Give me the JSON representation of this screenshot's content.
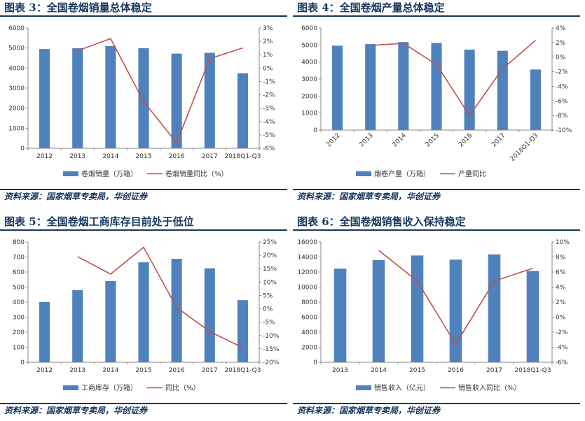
{
  "colors": {
    "bar": "#4F81BD",
    "line": "#C0504D",
    "title": "#17375E"
  },
  "source_text": "资料来源：国家烟草专卖局，华创证券",
  "panels": [
    {
      "title": "图表 3：全国卷烟销量总体稳定",
      "chart_data": {
        "type": "bar",
        "categories": [
          "2012",
          "2013",
          "2014",
          "2015",
          "2016",
          "2017",
          "2018Q1-Q3"
        ],
        "rotate_x_labels": false,
        "series": [
          {
            "name": "卷烟销量（万箱）",
            "kind": "bar",
            "axis": "left",
            "values": [
              4950,
              4990,
              5100,
              4990,
              4720,
              4760,
              3740
            ]
          },
          {
            "name": "卷烟销量同比（%）",
            "kind": "line",
            "axis": "right",
            "values": [
              null,
              1.3,
              2.2,
              -2.5,
              -5.6,
              0.7,
              1.5
            ]
          }
        ],
        "left_ylim": [
          0,
          6000
        ],
        "left_ticks": [
          "0",
          "1000",
          "2000",
          "3000",
          "4000",
          "5000",
          "6000"
        ],
        "right_ylim": [
          -6,
          3
        ],
        "right_ticks": [
          "-6%",
          "-5%",
          "-4%",
          "-3%",
          "-2%",
          "-1%",
          "0%",
          "1%",
          "2%",
          "3%"
        ],
        "legend_position": "bottom"
      }
    },
    {
      "title": "图表 4：全国卷烟产量总体稳定",
      "chart_data": {
        "type": "bar",
        "categories": [
          "2012",
          "2013",
          "2014",
          "2015",
          "2016",
          "2017",
          "2018Q1-Q3"
        ],
        "rotate_x_labels": true,
        "series": [
          {
            "name": "烟卷产量（万箱）",
            "kind": "bar",
            "axis": "left",
            "values": [
              4960,
              5050,
              5170,
              5120,
              4730,
              4660,
              3560
            ]
          },
          {
            "name": "产量同比",
            "kind": "line",
            "axis": "right",
            "values": [
              null,
              1.6,
              1.9,
              -1.0,
              -8.0,
              -1.6,
              2.3
            ]
          }
        ],
        "left_ylim": [
          0,
          6000
        ],
        "left_ticks": [
          "0",
          "1000",
          "2000",
          "3000",
          "4000",
          "5000",
          "6000"
        ],
        "right_ylim": [
          -10,
          4
        ],
        "right_ticks": [
          "-10%",
          "-8%",
          "-6%",
          "-4%",
          "-2%",
          "0%",
          "2%",
          "4%"
        ],
        "legend_position": "bottom"
      }
    },
    {
      "title": "图表 5：全国卷烟工商库存目前处于低位",
      "chart_data": {
        "type": "bar",
        "categories": [
          "2012",
          "2013",
          "2014",
          "2015",
          "2016",
          "2017",
          "2018Q1-Q3"
        ],
        "rotate_x_labels": false,
        "series": [
          {
            "name": "工商库存（万箱）",
            "kind": "bar",
            "axis": "left",
            "values": [
              400,
              480,
              540,
              665,
              688,
              625,
              413
            ]
          },
          {
            "name": "同比（%）",
            "kind": "line",
            "axis": "right",
            "values": [
              null,
              19.5,
              13,
              23,
              0.5,
              -8.5,
              -14.5
            ]
          }
        ],
        "left_ylim": [
          0,
          800
        ],
        "left_ticks": [
          "0",
          "100",
          "200",
          "300",
          "400",
          "500",
          "600",
          "700",
          "800"
        ],
        "right_ylim": [
          -20,
          25
        ],
        "right_ticks": [
          "-20%",
          "-15%",
          "-10%",
          "-5%",
          "0%",
          "5%",
          "10%",
          "15%",
          "20%",
          "25%"
        ],
        "legend_position": "bottom"
      }
    },
    {
      "title": "图表 6：全国卷烟销售收入保持稳定",
      "chart_data": {
        "type": "bar",
        "categories": [
          "2013",
          "2014",
          "2015",
          "2016",
          "2017",
          "2018Q1-Q3"
        ],
        "rotate_x_labels": false,
        "series": [
          {
            "name": "销售收入（亿元）",
            "kind": "bar",
            "axis": "left",
            "values": [
              12450,
              13600,
              14200,
              13650,
              14350,
              12150
            ]
          },
          {
            "name": "销售收入同比（%）",
            "kind": "line",
            "axis": "right",
            "values": [
              null,
              8.9,
              4.8,
              -3.6,
              4.8,
              6.5
            ]
          }
        ],
        "left_ylim": [
          0,
          16000
        ],
        "left_ticks": [
          "0",
          "2000",
          "4000",
          "6000",
          "8000",
          "10000",
          "12000",
          "14000",
          "16000"
        ],
        "right_ylim": [
          -6,
          10
        ],
        "right_ticks": [
          "-6%",
          "-4%",
          "-2%",
          "0%",
          "2%",
          "4%",
          "6%",
          "8%",
          "10%"
        ],
        "legend_position": "bottom"
      }
    }
  ]
}
